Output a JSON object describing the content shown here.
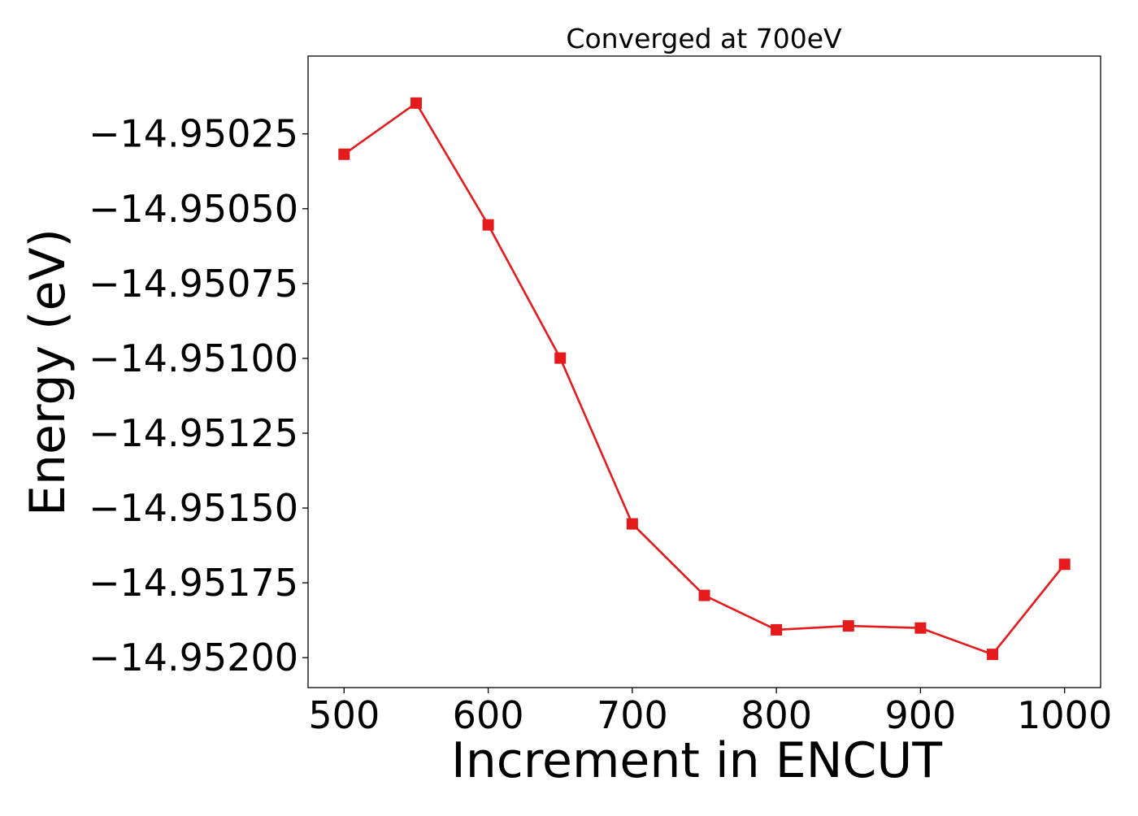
{
  "chart_data": {
    "type": "line",
    "title": "Converged at 700eV",
    "xlabel": "Increment in ENCUT",
    "ylabel": "Energy (eV)",
    "xlim": [
      475,
      1025
    ],
    "ylim": [
      -14.9521,
      -14.94999
    ],
    "xticks": [
      500,
      600,
      700,
      800,
      900,
      1000
    ],
    "xtick_labels": [
      "500",
      "600",
      "700",
      "800",
      "900",
      "1000"
    ],
    "yticks": [
      -14.95025,
      -14.9505,
      -14.95075,
      -14.951,
      -14.95125,
      -14.9515,
      -14.95175,
      -14.952
    ],
    "ytick_labels": [
      "−14.95025",
      "−14.95050",
      "−14.95075",
      "−14.95100",
      "−14.95125",
      "−14.95150",
      "−14.95175",
      "−14.95200"
    ],
    "grid": false,
    "series": [
      {
        "color": "#e41a1c",
        "marker": "square",
        "x": [
          500,
          550,
          600,
          650,
          700,
          750,
          800,
          850,
          900,
          950,
          1000
        ],
        "y": [
          -14.950318,
          -14.950147,
          -14.950554,
          -14.950999,
          -14.951553,
          -14.951792,
          -14.951907,
          -14.951894,
          -14.951901,
          -14.951989,
          -14.951688
        ]
      }
    ]
  }
}
